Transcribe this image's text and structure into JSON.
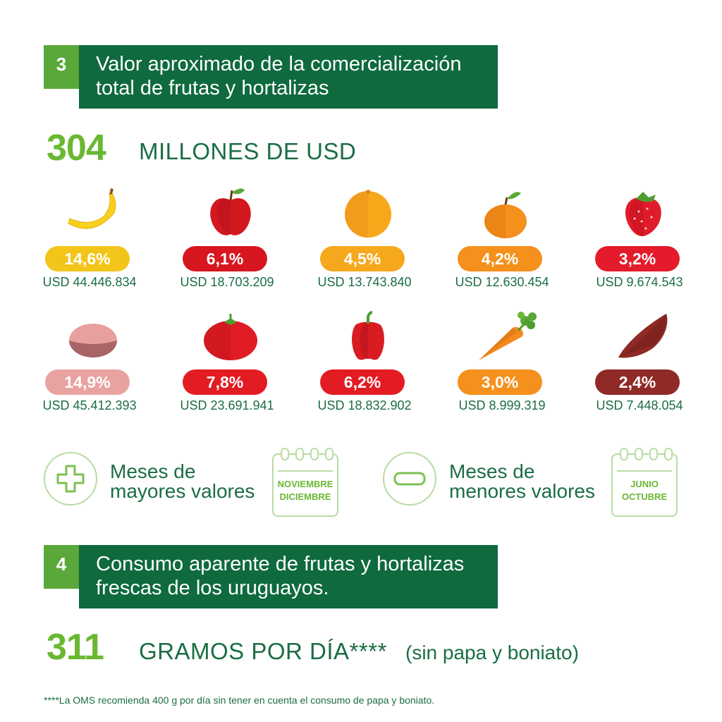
{
  "section3": {
    "number": "3",
    "title_line1": "Valor aproximado de la comercialización",
    "title_line2": "total de frutas y hortalizas"
  },
  "total_value": {
    "number": "304",
    "label": "MILLONES DE USD"
  },
  "items": [
    {
      "icon": "banana-icon",
      "percent": "14,6%",
      "usd": "USD 44.446.834",
      "color": "#f3c419"
    },
    {
      "icon": "apple-icon",
      "percent": "6,1%",
      "usd": "USD 18.703.209",
      "color": "#d7171f"
    },
    {
      "icon": "orange-icon",
      "percent": "4,5%",
      "usd": "USD 13.743.840",
      "color": "#f6a81c"
    },
    {
      "icon": "tangerine-icon",
      "percent": "4,2%",
      "usd": "USD 12.630.454",
      "color": "#f5901d"
    },
    {
      "icon": "strawberry-icon",
      "percent": "3,2%",
      "usd": "USD 9.674.543",
      "color": "#e31b2a"
    },
    {
      "icon": "potato-icon",
      "percent": "14,9%",
      "usd": "USD 45.412.393",
      "color": "#e8a3a1"
    },
    {
      "icon": "tomato-icon",
      "percent": "7,8%",
      "usd": "USD 23.691.941",
      "color": "#e31b23"
    },
    {
      "icon": "pepper-icon",
      "percent": "6,2%",
      "usd": "USD 18.832.902",
      "color": "#e31b23"
    },
    {
      "icon": "carrot-icon",
      "percent": "3,0%",
      "usd": "USD 8.999.319",
      "color": "#f5901d"
    },
    {
      "icon": "sweet-potato-icon",
      "percent": "2,4%",
      "usd": "USD 7.448.054",
      "color": "#8f2a26"
    }
  ],
  "months_high": {
    "line1": "Meses de",
    "line2": "mayores valores",
    "month1": "NOVIEMBRE",
    "month2": "DICIEMBRE"
  },
  "months_low": {
    "line1": "Meses de",
    "line2": "menores valores",
    "month1": "JUNIO",
    "month2": "OCTUBRE"
  },
  "section4": {
    "number": "4",
    "title_line1": "Consumo aparente de frutas y hortalizas",
    "title_line2": "frescas de los uruguayos."
  },
  "consumption": {
    "number": "311",
    "label": "GRAMOS POR DÍA****",
    "note": "(sin papa y boniato)"
  },
  "footnote": "****La OMS recomienda 400 g por día sin tener en cuenta el consumo de papa y boniato.",
  "colors": {
    "dark_green": "#0f6a3e",
    "light_green": "#5aa83a",
    "accent_green": "#6ab832"
  }
}
